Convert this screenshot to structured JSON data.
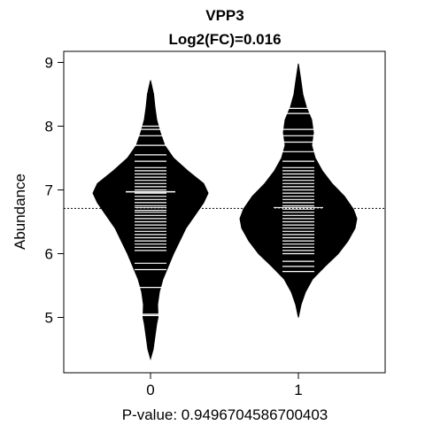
{
  "chart_data": {
    "type": "beanplot",
    "title": "VPP3",
    "subtitle": "Log2(FC)=0.016",
    "xlabel": "P-value: 0.9496704586700403",
    "ylabel": "Abundance",
    "categories": [
      "0",
      "1"
    ],
    "yticks": [
      "5",
      "6",
      "7",
      "8",
      "9"
    ],
    "ylim": [
      4.2,
      9.2
    ],
    "xlim": [
      0.5,
      2.5
    ],
    "grid": false,
    "colors": {
      "fill": "#000000",
      "lines": "#ffffff",
      "axis": "#000000"
    },
    "overall_mean": 6.71,
    "beans": [
      {
        "category": "0",
        "mean": 6.97,
        "density": [
          [
            4.35,
            0.0
          ],
          [
            4.5,
            0.03
          ],
          [
            4.7,
            0.05
          ],
          [
            4.9,
            0.07
          ],
          [
            5.0,
            0.085
          ],
          [
            5.2,
            0.08
          ],
          [
            5.4,
            0.1
          ],
          [
            5.6,
            0.14
          ],
          [
            5.8,
            0.2
          ],
          [
            6.0,
            0.26
          ],
          [
            6.2,
            0.33
          ],
          [
            6.4,
            0.4
          ],
          [
            6.6,
            0.5
          ],
          [
            6.8,
            0.6
          ],
          [
            6.95,
            0.65
          ],
          [
            7.1,
            0.6
          ],
          [
            7.3,
            0.42
          ],
          [
            7.5,
            0.26
          ],
          [
            7.7,
            0.16
          ],
          [
            7.9,
            0.11
          ],
          [
            8.1,
            0.07
          ],
          [
            8.3,
            0.05
          ],
          [
            8.5,
            0.035
          ],
          [
            8.72,
            0.0
          ]
        ],
        "points": [
          5.03,
          5.05,
          5.47,
          5.75,
          5.85,
          6.05,
          6.1,
          6.15,
          6.2,
          6.25,
          6.3,
          6.35,
          6.4,
          6.45,
          6.5,
          6.55,
          6.6,
          6.65,
          6.68,
          6.72,
          6.75,
          6.8,
          6.85,
          6.9,
          6.95,
          7.0,
          7.05,
          7.1,
          7.15,
          7.2,
          7.25,
          7.3,
          7.35,
          7.45,
          7.55,
          7.7,
          7.85,
          7.95,
          8.0
        ]
      },
      {
        "category": "1",
        "mean": 6.72,
        "density": [
          [
            5.0,
            0.0
          ],
          [
            5.2,
            0.03
          ],
          [
            5.4,
            0.08
          ],
          [
            5.6,
            0.16
          ],
          [
            5.8,
            0.3
          ],
          [
            6.0,
            0.45
          ],
          [
            6.2,
            0.56
          ],
          [
            6.4,
            0.64
          ],
          [
            6.55,
            0.66
          ],
          [
            6.7,
            0.62
          ],
          [
            6.9,
            0.52
          ],
          [
            7.1,
            0.38
          ],
          [
            7.3,
            0.27
          ],
          [
            7.5,
            0.19
          ],
          [
            7.7,
            0.15
          ],
          [
            7.9,
            0.17
          ],
          [
            8.1,
            0.15
          ],
          [
            8.3,
            0.09
          ],
          [
            8.5,
            0.05
          ],
          [
            8.7,
            0.03
          ],
          [
            8.98,
            0.0
          ]
        ],
        "points": [
          5.72,
          5.8,
          5.88,
          6.0,
          6.05,
          6.1,
          6.15,
          6.2,
          6.25,
          6.3,
          6.35,
          6.4,
          6.45,
          6.5,
          6.55,
          6.6,
          6.65,
          6.7,
          6.75,
          6.8,
          6.85,
          6.9,
          6.95,
          7.0,
          7.05,
          7.1,
          7.15,
          7.2,
          7.25,
          7.3,
          7.35,
          7.45,
          7.6,
          7.75,
          7.85,
          7.95,
          8.2,
          8.28
        ]
      }
    ]
  }
}
